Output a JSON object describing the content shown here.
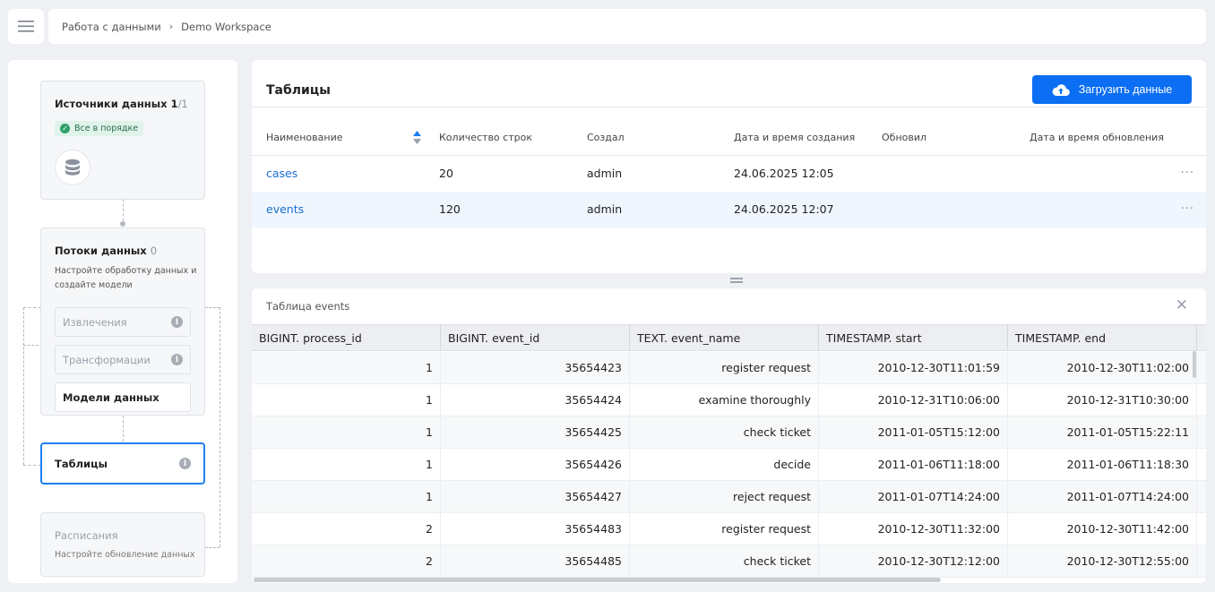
{
  "breadcrumb": {
    "root": "Работа с данными",
    "current": "Demo Workspace"
  },
  "pipeline": {
    "sources": {
      "title": "Источники данных",
      "count": "1",
      "total": "/1",
      "status": "Все в порядке"
    },
    "flows": {
      "title": "Потоки данных",
      "count": "0",
      "description": "Настройте обработку данных и создайте модели",
      "items": [
        "Извлечения",
        "Трансформации",
        "Модели данных"
      ]
    },
    "tables": {
      "title": "Таблицы"
    },
    "schedules": {
      "title": "Расписания",
      "description": "Настройте обновление данных"
    }
  },
  "tables_panel": {
    "title": "Таблицы",
    "upload_label": "Загрузить данные",
    "columns": [
      "Наименование",
      "Количество строк",
      "Создал",
      "Дата и время создания",
      "Обновил",
      "Дата и время обновления"
    ],
    "rows": [
      {
        "name": "cases",
        "rows": "20",
        "created_by": "admin",
        "created_at": "24.06.2025 12:05",
        "updated_by": "",
        "updated_at": ""
      },
      {
        "name": "events",
        "rows": "120",
        "created_by": "admin",
        "created_at": "24.06.2025 12:07",
        "updated_by": "",
        "updated_at": ""
      }
    ]
  },
  "preview": {
    "title": "Таблица events",
    "columns": [
      "BIGINT. process_id",
      "BIGINT. event_id",
      "TEXT. event_name",
      "TIMESTAMP. start",
      "TIMESTAMP. end"
    ],
    "rows": [
      [
        "1",
        "35654423",
        "register request",
        "2010-12-30T11:01:59",
        "2010-12-30T11:02:00"
      ],
      [
        "1",
        "35654424",
        "examine thoroughly",
        "2010-12-31T10:06:00",
        "2010-12-31T10:30:00"
      ],
      [
        "1",
        "35654425",
        "check ticket",
        "2011-01-05T15:12:00",
        "2011-01-05T15:22:11"
      ],
      [
        "1",
        "35654426",
        "decide",
        "2011-01-06T11:18:00",
        "2011-01-06T11:18:30"
      ],
      [
        "1",
        "35654427",
        "reject request",
        "2011-01-07T14:24:00",
        "2011-01-07T14:24:00"
      ],
      [
        "2",
        "35654483",
        "register request",
        "2010-12-30T11:32:00",
        "2010-12-30T11:42:00"
      ],
      [
        "2",
        "35654485",
        "check ticket",
        "2010-12-30T12:12:00",
        "2010-12-30T12:55:00"
      ]
    ]
  },
  "colors": {
    "accent": "#0b6ef3",
    "link": "#1a6fd0",
    "ok": "#2fa06a"
  }
}
